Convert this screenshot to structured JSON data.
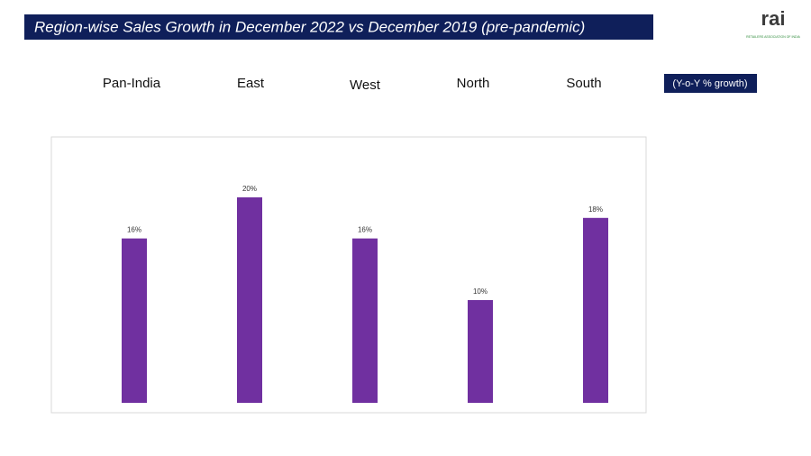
{
  "chart_data": {
    "type": "bar",
    "title": "Region-wise Sales Growth in December 2022 vs December 2019 (pre-pandemic)",
    "note": "(Y-o-Y % growth)",
    "logo": "rai",
    "logo_subtitle": "RETAILERS ASSOCIATION OF INDIA",
    "categories": [
      "Pan-India",
      "East",
      "West",
      "North",
      "South"
    ],
    "values": [
      16,
      20,
      16,
      10,
      18
    ],
    "value_labels": [
      "16%",
      "20%",
      "16%",
      "10%",
      "18%"
    ],
    "color": "#7030a0",
    "ylim": [
      0,
      24
    ]
  }
}
